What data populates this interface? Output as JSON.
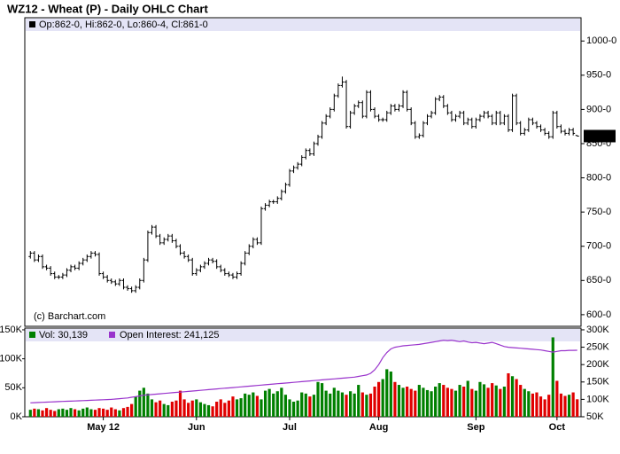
{
  "chart_data": [
    {
      "type": "ohlc",
      "title": "WZ12 - Wheat (P) - Daily OHLC Chart",
      "legend_text": "Op:862-0, Hi:862-0, Lo:860-4, Cl:861-0",
      "watermark": "(c) Barchart.com",
      "last_price_label": "861-0",
      "color": "#000000",
      "categories": [
        null,
        null,
        null,
        null,
        null,
        null,
        null,
        null,
        null,
        null,
        null,
        null,
        null,
        null,
        null,
        null,
        null,
        null,
        "May 12",
        null,
        null,
        null,
        null,
        null,
        null,
        null,
        null,
        null,
        null,
        null,
        null,
        null,
        null,
        null,
        null,
        null,
        null,
        null,
        null,
        null,
        null,
        "Jun",
        null,
        null,
        null,
        null,
        null,
        null,
        null,
        null,
        null,
        null,
        null,
        null,
        null,
        null,
        null,
        null,
        null,
        null,
        null,
        null,
        null,
        null,
        "Jul",
        null,
        null,
        null,
        null,
        null,
        null,
        null,
        null,
        null,
        null,
        null,
        null,
        null,
        null,
        null,
        null,
        null,
        null,
        null,
        null,
        null,
        "Aug",
        null,
        null,
        null,
        null,
        null,
        null,
        null,
        null,
        null,
        null,
        null,
        null,
        null,
        null,
        null,
        null,
        null,
        null,
        null,
        null,
        null,
        null,
        null,
        "Sep",
        null,
        null,
        null,
        null,
        null,
        null,
        null,
        null,
        null,
        null,
        null,
        null,
        null,
        null,
        null,
        null,
        null,
        null,
        null,
        "Oct",
        null,
        null,
        null,
        null,
        null
      ],
      "open": [
        685,
        690,
        680,
        685,
        670,
        668,
        660,
        655,
        655,
        658,
        665,
        670,
        668,
        675,
        680,
        685,
        690,
        688,
        660,
        655,
        650,
        648,
        645,
        650,
        640,
        638,
        635,
        640,
        650,
        680,
        720,
        728,
        715,
        705,
        710,
        715,
        708,
        700,
        690,
        685,
        680,
        660,
        665,
        670,
        675,
        680,
        678,
        670,
        665,
        660,
        658,
        655,
        660,
        675,
        690,
        700,
        710,
        705,
        755,
        760,
        765,
        765,
        770,
        780,
        790,
        810,
        815,
        820,
        830,
        840,
        835,
        850,
        860,
        880,
        890,
        900,
        920,
        935,
        940,
        875,
        895,
        905,
        910,
        890,
        925,
        900,
        890,
        885,
        885,
        895,
        905,
        900,
        905,
        925,
        900,
        880,
        860,
        862,
        880,
        890,
        895,
        915,
        918,
        905,
        895,
        885,
        890,
        895,
        880,
        885,
        875,
        885,
        890,
        895,
        890,
        880,
        895,
        880,
        890,
        870,
        920,
        880,
        865,
        870,
        885,
        880,
        875,
        870,
        865,
        860,
        895,
        875,
        868,
        865,
        870,
        862
      ],
      "high": [
        693,
        693,
        688,
        688,
        673,
        671,
        663,
        658,
        661,
        668,
        673,
        673,
        678,
        683,
        688,
        693,
        693,
        691,
        663,
        658,
        653,
        651,
        653,
        653,
        643,
        641,
        643,
        653,
        683,
        723,
        731,
        731,
        718,
        713,
        718,
        718,
        711,
        703,
        693,
        688,
        683,
        668,
        673,
        678,
        683,
        683,
        681,
        673,
        668,
        663,
        661,
        663,
        678,
        693,
        703,
        713,
        713,
        758,
        763,
        768,
        768,
        773,
        783,
        793,
        813,
        818,
        823,
        833,
        843,
        843,
        853,
        863,
        883,
        893,
        903,
        923,
        938,
        948,
        943,
        898,
        908,
        913,
        913,
        928,
        928,
        903,
        893,
        888,
        898,
        908,
        908,
        908,
        928,
        928,
        903,
        883,
        865,
        883,
        893,
        898,
        918,
        921,
        921,
        908,
        898,
        893,
        898,
        898,
        888,
        888,
        888,
        893,
        898,
        898,
        893,
        898,
        898,
        893,
        893,
        923,
        923,
        883,
        873,
        888,
        888,
        883,
        878,
        873,
        868,
        898,
        898,
        878,
        871,
        873,
        873,
        862
      ],
      "low": [
        682,
        677,
        677,
        667,
        665,
        657,
        652,
        652,
        652,
        655,
        662,
        665,
        665,
        672,
        677,
        682,
        685,
        657,
        652,
        647,
        645,
        642,
        642,
        637,
        635,
        632,
        632,
        637,
        647,
        677,
        717,
        712,
        702,
        702,
        707,
        705,
        697,
        687,
        682,
        677,
        657,
        657,
        662,
        667,
        672,
        675,
        667,
        662,
        657,
        655,
        652,
        652,
        657,
        672,
        687,
        697,
        702,
        702,
        752,
        757,
        762,
        762,
        767,
        777,
        787,
        807,
        812,
        817,
        827,
        832,
        832,
        847,
        857,
        877,
        887,
        897,
        917,
        932,
        872,
        872,
        892,
        902,
        887,
        887,
        897,
        887,
        882,
        882,
        882,
        892,
        897,
        897,
        902,
        897,
        877,
        857,
        857,
        859,
        877,
        887,
        892,
        912,
        902,
        892,
        882,
        882,
        887,
        877,
        877,
        872,
        872,
        882,
        887,
        887,
        877,
        877,
        877,
        877,
        867,
        867,
        877,
        862,
        862,
        867,
        877,
        872,
        867,
        862,
        857,
        857,
        872,
        865,
        862,
        862,
        862,
        860.5
      ],
      "close": [
        690,
        680,
        685,
        670,
        668,
        660,
        655,
        655,
        658,
        665,
        670,
        668,
        675,
        680,
        685,
        690,
        688,
        660,
        655,
        650,
        648,
        645,
        650,
        640,
        638,
        635,
        640,
        650,
        680,
        720,
        728,
        715,
        705,
        710,
        715,
        708,
        700,
        690,
        685,
        680,
        660,
        665,
        670,
        675,
        680,
        678,
        670,
        665,
        660,
        658,
        655,
        660,
        675,
        690,
        700,
        710,
        705,
        755,
        760,
        765,
        765,
        770,
        780,
        790,
        810,
        815,
        820,
        830,
        840,
        835,
        850,
        860,
        880,
        890,
        900,
        920,
        935,
        940,
        875,
        895,
        905,
        910,
        890,
        925,
        900,
        890,
        885,
        885,
        895,
        905,
        900,
        905,
        925,
        900,
        880,
        860,
        862,
        880,
        890,
        895,
        915,
        918,
        905,
        895,
        885,
        890,
        895,
        880,
        885,
        875,
        885,
        890,
        895,
        890,
        880,
        895,
        880,
        890,
        870,
        920,
        880,
        865,
        870,
        885,
        880,
        875,
        870,
        865,
        860,
        895,
        875,
        868,
        865,
        870,
        865,
        861
      ],
      "ylim": [
        583,
        1034
      ],
      "yticks": [
        {
          "value": 600,
          "label": "600-0"
        },
        {
          "value": 650,
          "label": "650-0"
        },
        {
          "value": 700,
          "label": "700-0"
        },
        {
          "value": 750,
          "label": "750-0"
        },
        {
          "value": 800,
          "label": "800-0"
        },
        {
          "value": 850,
          "label": "850-0"
        },
        {
          "value": 900,
          "label": "900-0"
        },
        {
          "value": 950,
          "label": "950-0"
        },
        {
          "value": 1000,
          "label": "1000-0"
        }
      ]
    },
    {
      "type": "volume",
      "series": [
        {
          "name": "Vol: 30,139",
          "up_color": "#008000",
          "down_color": "#e00000",
          "values": [
            12000,
            14000,
            13000,
            11000,
            15000,
            12000,
            10000,
            13000,
            14000,
            12000,
            15000,
            13000,
            11000,
            14000,
            16000,
            13000,
            12000,
            15000,
            14000,
            12000,
            16000,
            13000,
            11000,
            15000,
            17000,
            22000,
            35000,
            45000,
            50000,
            40000,
            30000,
            25000,
            28000,
            22000,
            20000,
            26000,
            28000,
            45000,
            30000,
            24000,
            28000,
            30000,
            25000,
            22000,
            20000,
            18000,
            26000,
            30000,
            24000,
            28000,
            35000,
            30000,
            32000,
            40000,
            38000,
            42000,
            36000,
            30000,
            45000,
            48000,
            40000,
            44000,
            50000,
            38000,
            30000,
            26000,
            28000,
            42000,
            40000,
            35000,
            38000,
            60000,
            58000,
            45000,
            40000,
            50000,
            45000,
            42000,
            38000,
            44000,
            40000,
            55000,
            42000,
            38000,
            40000,
            52000,
            60000,
            65000,
            82000,
            78000,
            60000,
            55000,
            50000,
            52000,
            48000,
            45000,
            55000,
            50000,
            46000,
            44000,
            52000,
            58000,
            55000,
            50000,
            48000,
            45000,
            55000,
            52000,
            62000,
            48000,
            45000,
            60000,
            56000,
            50000,
            58000,
            54000,
            48000,
            52000,
            75000,
            70000,
            65000,
            55000,
            48000,
            44000,
            40000,
            42000,
            35000,
            30000,
            38000,
            137000,
            62000,
            40000,
            36000,
            38000,
            42000,
            30139
          ]
        },
        {
          "name": "Open Interest: 241,125",
          "color": "#9933cc",
          "axis": "y2",
          "values": [
            90000,
            90500,
            91000,
            91500,
            92000,
            92500,
            93000,
            93500,
            94000,
            94500,
            95000,
            95500,
            96000,
            96500,
            97000,
            97500,
            98000,
            98500,
            99000,
            99500,
            100000,
            101000,
            102000,
            103000,
            104000,
            106000,
            108000,
            110000,
            112000,
            113000,
            114000,
            115000,
            116000,
            117000,
            118000,
            119000,
            120000,
            121000,
            122000,
            123000,
            124000,
            125000,
            126000,
            127000,
            128000,
            129000,
            130000,
            131000,
            132000,
            133000,
            134000,
            135000,
            136000,
            137000,
            138000,
            139000,
            140000,
            141000,
            142000,
            143000,
            144000,
            145000,
            146000,
            147000,
            148000,
            149000,
            150000,
            151000,
            152000,
            153000,
            154000,
            155000,
            156000,
            157000,
            158000,
            159000,
            160000,
            161000,
            162000,
            163000,
            164000,
            166000,
            168000,
            170000,
            175000,
            185000,
            200000,
            220000,
            235000,
            245000,
            250000,
            252000,
            254000,
            255000,
            256000,
            257000,
            258000,
            260000,
            262000,
            264000,
            266000,
            268000,
            270000,
            269000,
            270000,
            268000,
            266000,
            268000,
            265000,
            263000,
            264000,
            262000,
            260000,
            262000,
            264000,
            260000,
            256000,
            252000,
            250000,
            249000,
            248000,
            247000,
            246000,
            245000,
            244000,
            243000,
            242000,
            240000,
            238000,
            236000,
            238000,
            240000,
            240000,
            241000,
            241000,
            241125
          ]
        }
      ],
      "ylim": [
        0,
        153000
      ],
      "yticks": [
        {
          "value": 0,
          "label": "0K"
        },
        {
          "value": 50000,
          "label": "50K"
        },
        {
          "value": 100000,
          "label": "100K"
        },
        {
          "value": 150000,
          "label": "150K"
        }
      ],
      "y2lim": [
        50000,
        305000
      ],
      "y2ticks": [
        {
          "value": 50000,
          "label": "50K"
        },
        {
          "value": 100000,
          "label": "100K"
        },
        {
          "value": 150000,
          "label": "150K"
        },
        {
          "value": 200000,
          "label": "200K"
        },
        {
          "value": 250000,
          "label": "250K"
        },
        {
          "value": 300000,
          "label": "300K"
        }
      ]
    }
  ]
}
